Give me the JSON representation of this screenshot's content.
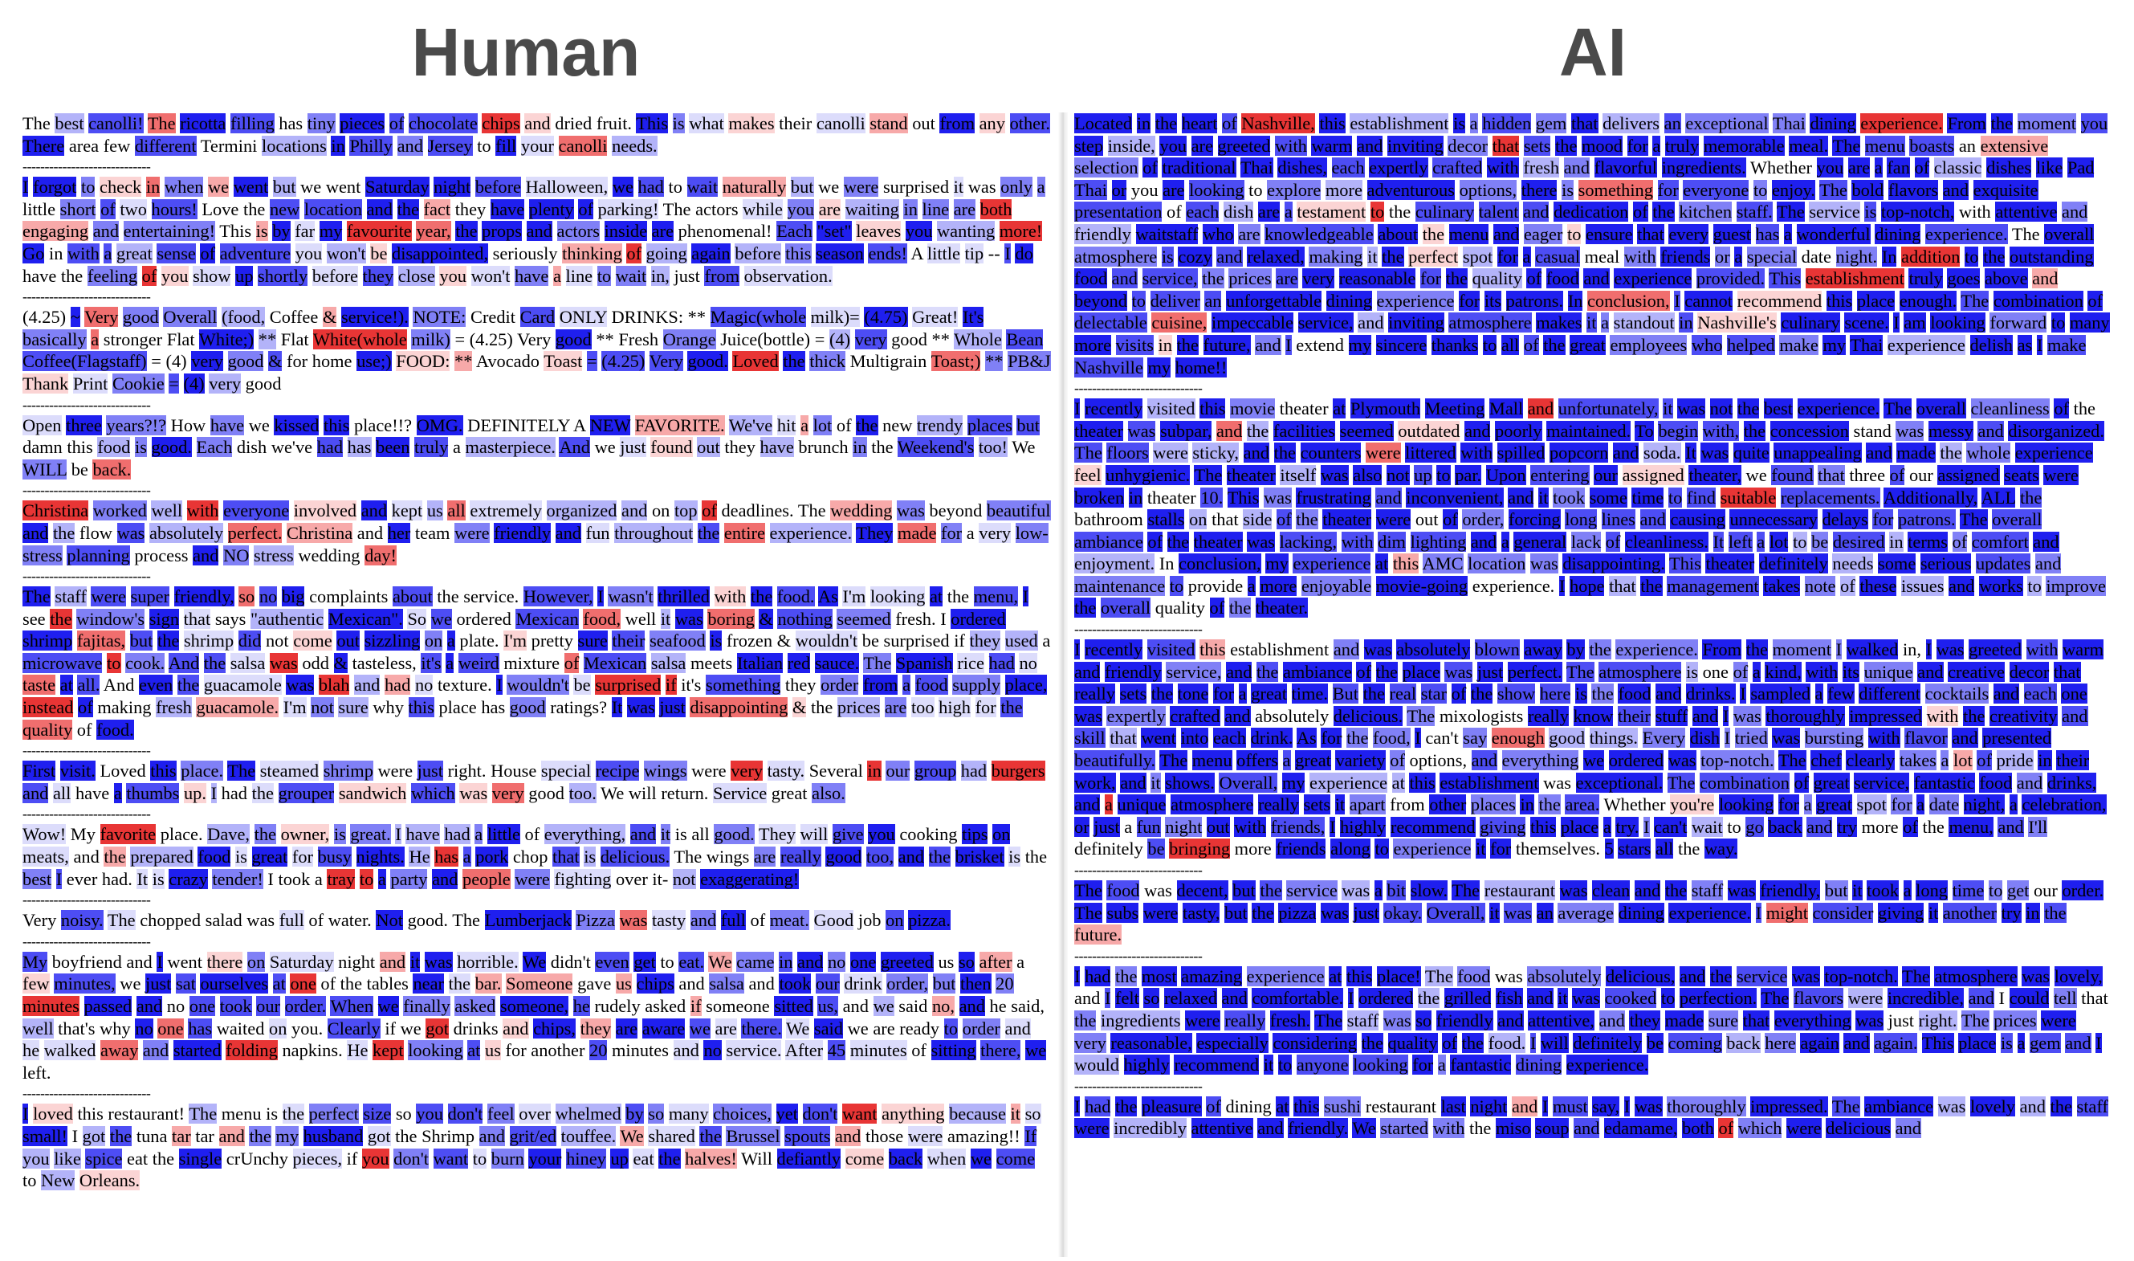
{
  "headings": {
    "human": "Human",
    "ai": "AI"
  },
  "separator": "-----------------------------",
  "human_reviews": [
    "The best canolli! The ricotta filling has tiny pieces of chocolate chips and dried fruit. This is what makes their canolli stand out from any other. There area few different Termini locations in Philly and Jersey to fill your canolli needs.",
    "I forgot to check in when we went but we went Saturday night before Halloween, we had to wait naturally but we were surprised it was only a little short of two hours! Love the new location and the fact they have plenty of parking! The actors while you are waiting in line are both engaging and entertaining! This is by far my favourite year, the props and actors inside are phenomenal! Each \"set\" leaves you wanting more! Go in with a great sense of adventure you won't be disappointed, seriously thinking of going again before this season ends! A little tip -- I do have the feeling of you show up shortly before they close you won't have a line to wait in, just from observation.",
    "(4.25) ~ Very good Overall (food, Coffee & service!). NOTE: Credit Card ONLY DRINKS: ** Magic(whole milk)= (4.75) Great! It's basically a stronger Flat White;) ** Flat White(whole milk) = (4.25) Very good ** Fresh Orange Juice(bottle) = (4) very good ** Whole Bean Coffee(Flagstaff) = (4) very good & for home use;) FOOD: ** Avocado Toast = (4.25) Very good. Loved the thick Multigrain Toast;) ** PB&J Thank Print Cookie = (4) very good",
    "Open three years?!? How have we kissed this place!!? OMG. DEFINITELY A NEW FAVORITE. We've hit a lot of the new trendy places but damn this food is good. Each dish we've had has been truly a masterpiece. And we just found out they have brunch in the Weekend's too! We WILL be back.",
    "Christina worked well with everyone involved and kept us all extremely organized and on top of deadlines. The wedding was beyond beautiful and the flow was absolutely perfect. Christina and her team were friendly and fun throughout the entire experience. They made for a very low-stress planning process and NO stress wedding day!",
    "The staff were super friendly, so no big complaints about the service. However, I wasn't thrilled with the food. As I'm looking at the menu, I see the window's sign that says \"authentic Mexican\". So we ordered Mexican food, well it was boring & nothing seemed fresh. I ordered shrimp fajitas, but the shrimp did not come out sizzling on a plate. I'm pretty sure their seafood is frozen & wouldn't be surprised if they used a microwave to cook. And the salsa was odd & tasteless, it's a weird mixture of Mexican salsa meets Italian red sauce. The Spanish rice had no taste at all. And even the guacamole was blah and had no texture. I wouldn't be surprised if it's something they order from a food supply place, instead of making fresh guacamole. I'm not sure why this place has good ratings? It was just disappointing & the prices are too high for the quality of food.",
    "First visit. Loved this place. The steamed shrimp were just right. House special recipe wings were very tasty. Several in our group had burgers and all have a thumbs up. I had the grouper sandwich which was very good too. We will return. Service great also.",
    "Wow! My favorite place. Dave, the owner, is great. I have had a little of everything, and it is all good. They will give you cooking tips on meats, and the prepared food is great for busy nights. He has a pork chop that is delicious. The wings are really good too, and the brisket is the best I ever had. It is crazy tender! I took a tray to a party and people were fighting over it- not exaggerating!",
    "Very noisy. The chopped salad was full of water. Not good. The Lumberjack Pizza was tasty and full of meat. Good job on pizza.",
    "My boyfriend and I went there on Saturday night and it was horrible. We didn't even get to eat. We came in and no one greeted us so after a few minutes, we just sat ourselves at one of the tables near the bar. Someone gave us chips and salsa and took our drink order, but then 20 minutes passed and no one took our order. When we finally asked someone, he rudely asked if someone sitted us, and we said no, and he said, well that's why no one has waited on you. Clearly if we got drinks and chips, they are aware we are there. We said we are ready to order and he walked away and started folding napkins. He kept looking at us for another 20 minutes and no service. After 45 minutes of sitting there, we left.",
    "I loved this restaurant! The menu is the perfect size so you don't feel over whelmed by so many choices, yet don't want anything because it so small! I got the tuna tar tar and the my husband got the Shrimp and grit/ed touffee. We shared the Brussel spouts and those were amazing!! If you like spice eat the single crUnchy pieces, if you don't want to burn your hiney up eat the halves! Will defiantly come back when we come to New Orleans."
  ],
  "ai_reviews": [
    "Located in the heart of Nashville, this establishment is a hidden gem that delivers an exceptional Thai dining experience. From the moment you step inside, you are greeted with warm and inviting decor that sets the mood for a truly memorable meal. The menu boasts an extensive selection of traditional Thai dishes, each expertly crafted with fresh and flavorful ingredients. Whether you are a fan of classic dishes like Pad Thai or you are looking to explore more adventurous options, there is something for everyone to enjoy. The bold flavors and exquisite presentation of each dish are a testament to the culinary talent and dedication of the kitchen staff. The service is top-notch, with attentive and friendly waitstaff who are knowledgeable about the menu and eager to ensure that every guest has a wonderful dining experience. The overall atmosphere is cozy and relaxed, making it the perfect spot for a casual meal with friends or a special date night. In addition to the outstanding food and service, the prices are very reasonable for the quality of food and experience provided. This establishment truly goes above and beyond to deliver an unforgettable dining experience for its patrons. In conclusion, I cannot recommend this place enough. The combination of delectable cuisine, impeccable service, and inviting atmosphere makes it a standout in Nashville's culinary scene. I am looking forward to many more visits in the future, and I extend my sincere thanks to all of the great employees who helped make my Thai experience delish as I make Nashville my home!!",
    "I recently visited this movie theater at Plymouth Meeting Mall and unfortunately, it was not the best experience. The overall cleanliness of the theater was subpar, and the facilities seemed outdated and poorly maintained. To begin with, the concession stand was messy and disorganized. The floors were sticky, and the counters were littered with spilled popcorn and soda. It was quite unappealing and made the whole experience feel unhygienic. The theater itself was also not up to par. Upon entering our assigned theater, we found that three of our assigned seats were broken in theater 10. This was frustrating and inconvenient, and it took some time to find suitable replacements. Additionally, ALL the bathroom stalls on that side of the theater were out of order, forcing long lines and causing unnecessary delays for patrons. The overall ambiance of the theater was lacking, with dim lighting and a general lack of cleanliness. It left a lot to be desired in terms of comfort and enjoyment. In conclusion, my experience at this AMC location was disappointing. This theater definitely needs some serious updates and maintenance to provide a more enjoyable movie-going experience. I hope that the management takes note of these issues and works to improve the overall quality of the theater.",
    "I recently visited this establishment and was absolutely blown away by the experience. From the moment I walked in, I was greeted with warm and friendly service, and the ambiance of the place was just perfect. The atmosphere is one of a kind, with its unique and creative decor that really sets the tone for a great time. But the real star of the show here is the food and drinks. I sampled a few different cocktails and each one was expertly crafted and absolutely delicious. The mixologists really know their stuff and I was thoroughly impressed with the creativity and skill that went into each drink. As for the food, I can't say enough good things. Every dish I tried was bursting with flavor and presented beautifully. The menu offers a great variety of options, and everything we ordered was top-notch. The chef clearly takes a lot of pride in their work, and it shows. Overall, my experience at this establishment was exceptional. The combination of great service, fantastic food and drinks, and a unique atmosphere really sets it apart from other places in the area. Whether you're looking for a great spot for a date night, a celebration, or just a fun night out with friends, I highly recommend giving this place a try. I can't wait to go back and try more of the menu, and I'll definitely be bringing more friends along to experience it for themselves. 5 stars all the way.",
    "The food was decent, but the service was a bit slow. The restaurant was clean and the staff was friendly, but it took a long time to get our order. The subs were tasty, but the pizza was just okay. Overall, it was an average dining experience. I might consider giving it another try in the future.",
    "I had the most amazing experience at this place! The food was absolutely delicious, and the service was top-notch. The atmosphere was lovely, and I felt so relaxed and comfortable. I ordered the grilled fish and it was cooked to perfection. The flavors were incredible, and I could tell that the ingredients were really fresh. The staff was so friendly and attentive, and they made sure that everything was just right. The prices were very reasonable, especially considering the quality of the food. I will definitely be coming back here again and again. This place is a gem and I would highly recommend it to anyone looking for a fantastic dining experience.",
    "I had the pleasure of dining at this sushi restaurant last night and I must say, I was thoroughly impressed. The ambiance was lovely and the staff were incredibly attentive and friendly. We started with the miso soup and edamame, both of which were delicious and"
  ]
}
